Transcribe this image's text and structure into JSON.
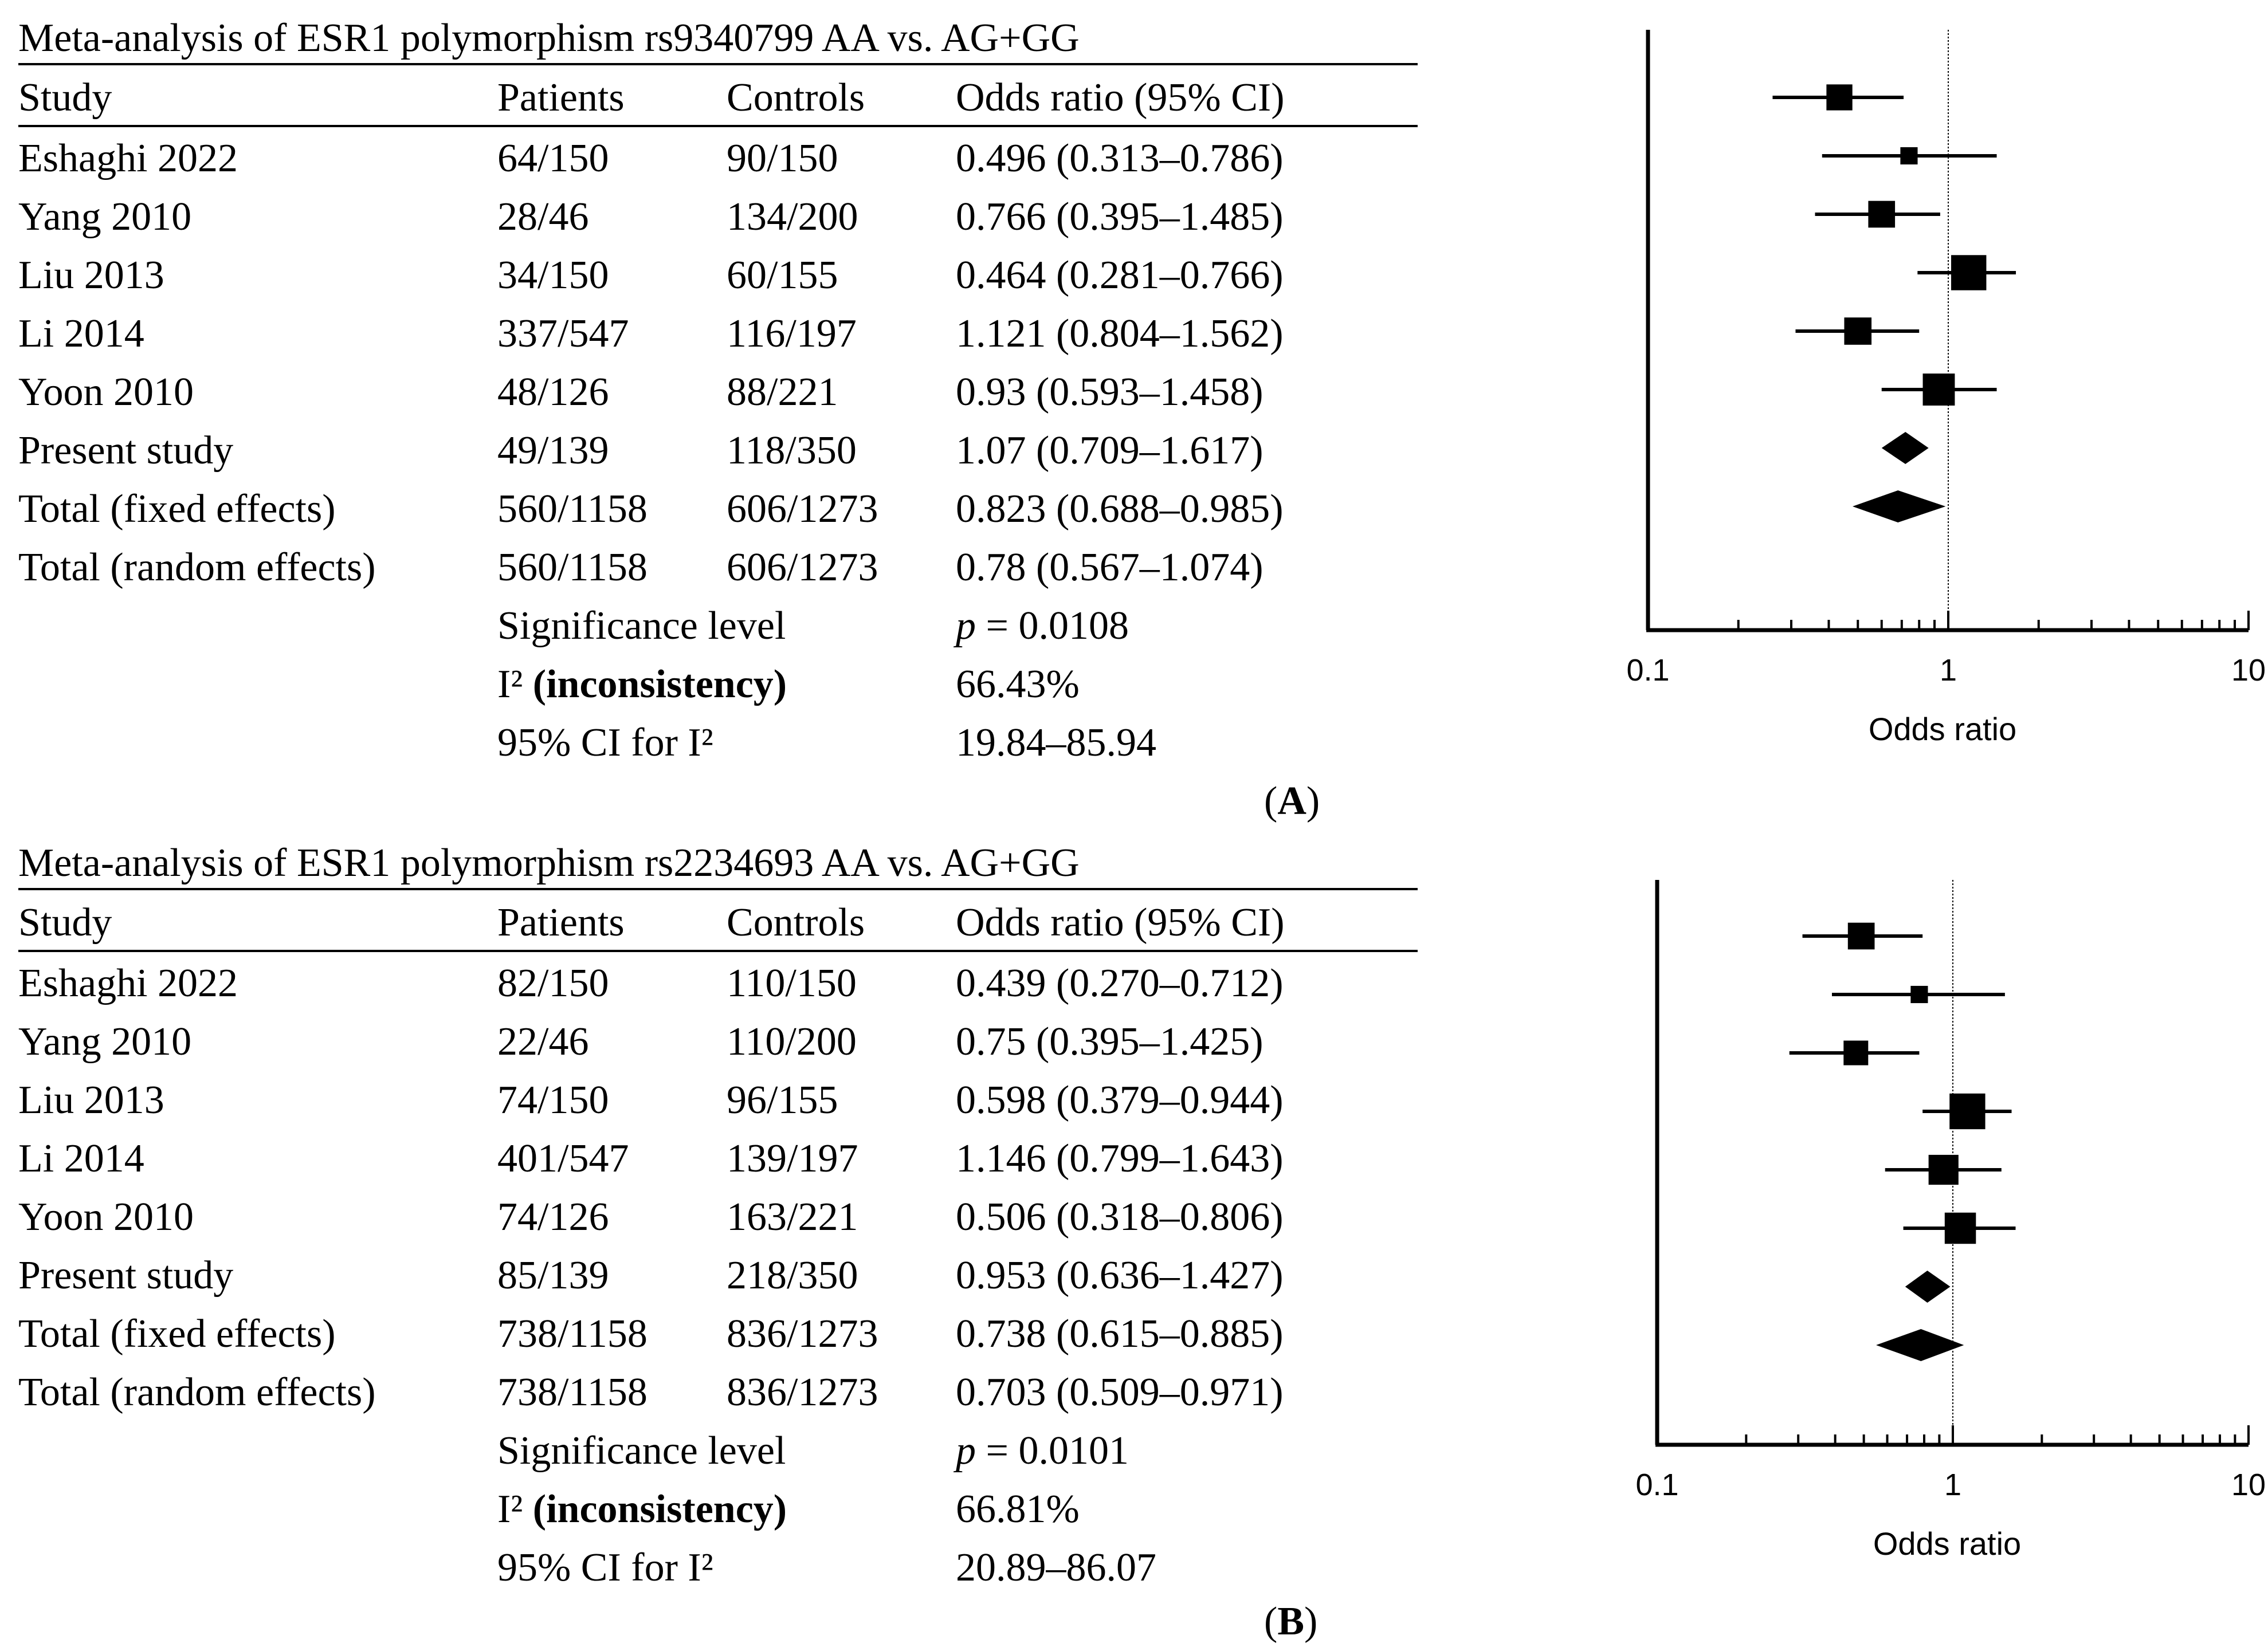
{
  "panels": [
    {
      "id": "A",
      "title": "Meta-analysis of ESR1 polymorphism rs9340799 AA vs. AG+GG",
      "headers": [
        "Study",
        "Patients",
        "Controls",
        "Odds ratio (95% CI)"
      ],
      "rows": [
        [
          "Eshaghi 2022",
          "64/150",
          "90/150",
          "0.496 (0.313–0.786)"
        ],
        [
          "Yang 2010",
          "28/46",
          "134/200",
          "0.766 (0.395–1.485)"
        ],
        [
          "Liu 2013",
          "34/150",
          "60/155",
          "0.464 (0.281–0.766)"
        ],
        [
          "Li 2014",
          "337/547",
          "116/197",
          "1.121 (0.804–1.562)"
        ],
        [
          "Yoon 2010",
          "48/126",
          "88/221",
          "0.93 (0.593–1.458)"
        ],
        [
          "Present study",
          "49/139",
          "118/350",
          "1.07 (0.709–1.617)"
        ],
        [
          "Total (fixed effects)",
          "560/1158",
          "606/1273",
          "0.823 (0.688–0.985)"
        ],
        [
          "Total (random effects)",
          "560/1158",
          "606/1273",
          "0.78 (0.567–1.074)"
        ]
      ],
      "stats": {
        "sig_label": "Significance level",
        "p_symbol": "p",
        "p_value": " = 0.0108",
        "i2_label_prefix": "I²",
        "i2_label_suffix": " (inconsistency)",
        "i2_value": "66.43%",
        "ci_i2_label": "95% CI for I²",
        "ci_i2_value": "19.84–85.94"
      },
      "label_open": "(",
      "label_letter": "A",
      "label_close": ")"
    },
    {
      "id": "B",
      "title": "Meta-analysis of ESR1 polymorphism rs2234693 AA vs. AG+GG",
      "headers": [
        "Study",
        "Patients",
        "Controls",
        "Odds ratio (95% CI)"
      ],
      "rows": [
        [
          "Eshaghi 2022",
          "82/150",
          "110/150",
          "0.439 (0.270–0.712)"
        ],
        [
          "Yang 2010",
          "22/46",
          "110/200",
          "0.75 (0.395–1.425)"
        ],
        [
          "Liu 2013",
          "74/150",
          "96/155",
          "0.598 (0.379–0.944)"
        ],
        [
          "Li 2014",
          "401/547",
          "139/197",
          "1.146 (0.799–1.643)"
        ],
        [
          "Yoon 2010",
          "74/126",
          "163/221",
          "0.506 (0.318–0.806)"
        ],
        [
          "Present study",
          "85/139",
          "218/350",
          "0.953 (0.636–1.427)"
        ],
        [
          "Total (fixed effects)",
          "738/1158",
          "836/1273",
          "0.738 (0.615–0.885)"
        ],
        [
          "Total (random effects)",
          "738/1158",
          "836/1273",
          "0.703 (0.509–0.971)"
        ]
      ],
      "stats": {
        "sig_label": "Significance level",
        "p_symbol": "p",
        "p_value": " = 0.0101",
        "i2_label_prefix": "I²",
        "i2_label_suffix": " (inconsistency)",
        "i2_value": "66.81%",
        "ci_i2_label": "95% CI for I²",
        "ci_i2_value": "20.89–86.07"
      },
      "label_open": "(",
      "label_letter": "B",
      "label_close": ")"
    }
  ],
  "chart_data": [
    {
      "type": "forest",
      "xscale": "log",
      "xlim": [
        0.1,
        10
      ],
      "xticks": [
        0.1,
        1,
        10
      ],
      "xtick_labels": [
        "0.1",
        "1",
        "10"
      ],
      "xlabel": "Odds ratio",
      "reference_line": 1,
      "studies": [
        {
          "or": 0.434,
          "lo": 0.26,
          "hi": 0.71,
          "weight": 0.55
        },
        {
          "or": 0.74,
          "lo": 0.38,
          "hi": 1.45,
          "weight": 0.22
        },
        {
          "or": 0.6,
          "lo": 0.36,
          "hi": 0.94,
          "weight": 0.58
        },
        {
          "or": 1.17,
          "lo": 0.79,
          "hi": 1.68,
          "weight": 0.9
        },
        {
          "or": 0.5,
          "lo": 0.31,
          "hi": 0.8,
          "weight": 0.6
        },
        {
          "or": 0.93,
          "lo": 0.6,
          "hi": 1.45,
          "weight": 0.78
        }
      ],
      "pooled": [
        {
          "or": 0.72,
          "lo": 0.6,
          "hi": 0.86
        },
        {
          "or": 0.68,
          "lo": 0.48,
          "hi": 0.98
        }
      ]
    },
    {
      "type": "forest",
      "xscale": "log",
      "xlim": [
        0.1,
        10
      ],
      "xticks": [
        0.1,
        1,
        10
      ],
      "xtick_labels": [
        "0.1",
        "1",
        "10"
      ],
      "xlabel": "Odds ratio",
      "reference_line": 1,
      "studies": [
        {
          "or": 0.49,
          "lo": 0.31,
          "hi": 0.79,
          "weight": 0.58
        },
        {
          "or": 0.77,
          "lo": 0.39,
          "hi": 1.5,
          "weight": 0.22
        },
        {
          "or": 0.47,
          "lo": 0.28,
          "hi": 0.77,
          "weight": 0.5
        },
        {
          "or": 1.12,
          "lo": 0.79,
          "hi": 1.58,
          "weight": 0.92
        },
        {
          "or": 0.93,
          "lo": 0.59,
          "hi": 1.46,
          "weight": 0.7
        },
        {
          "or": 1.06,
          "lo": 0.68,
          "hi": 1.63,
          "weight": 0.75
        }
      ],
      "pooled": [
        {
          "or": 0.82,
          "lo": 0.69,
          "hi": 0.98
        },
        {
          "or": 0.78,
          "lo": 0.55,
          "hi": 1.09
        }
      ]
    }
  ]
}
